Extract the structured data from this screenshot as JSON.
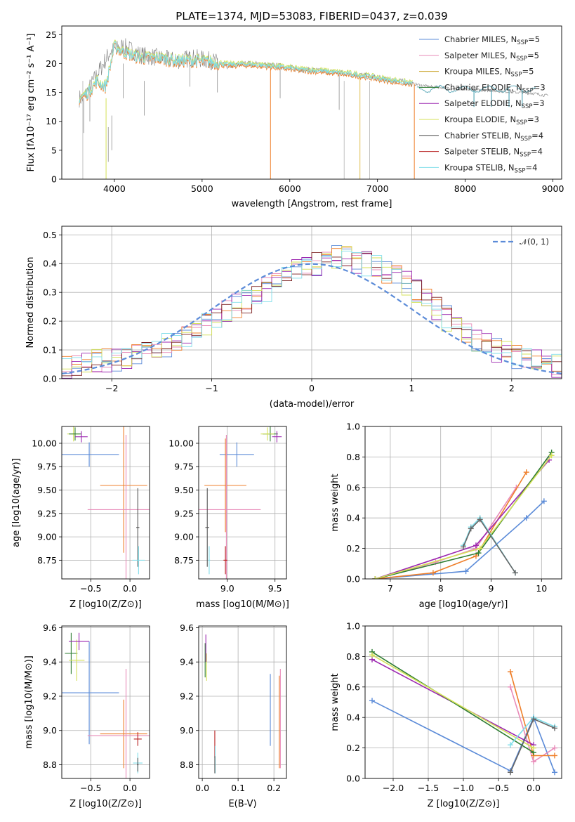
{
  "chart_data": [
    {
      "id": "spectrum",
      "type": "line",
      "title": "PLATE=1374, MJD=53083, FIBERID=0437, z=0.039",
      "xlabel": "wavelength [Angstrom, rest frame]",
      "ylabel": "Flux [fλ10⁻¹⁷ erg cm⁻² s⁻¹ A⁻¹]",
      "xlim": [
        3400,
        9100
      ],
      "ylim": [
        0,
        26.5
      ],
      "xticks": [
        4000,
        5000,
        6000,
        7000,
        8000,
        9000
      ],
      "yticks": [
        0,
        5,
        10,
        15,
        20,
        25
      ],
      "grid": false,
      "legend_position": "top-right",
      "legend": [
        {
          "label": "Chabrier MILES, N_SSP=5",
          "text": "Chabrier MILES, N",
          "sub": "SSP",
          "n": "=5",
          "color": "#5b8bd8"
        },
        {
          "label": "Salpeter MILES, N_SSP=5",
          "text": "Salpeter MILES, N",
          "sub": "SSP",
          "n": "=5",
          "color": "#e88ab8"
        },
        {
          "label": "Kroupa MILES, N_SSP=5",
          "text": "Kroupa MILES, N",
          "sub": "SSP",
          "n": "=5",
          "color": "#c9a227"
        },
        {
          "label": "Chabrier ELODIE, N_SSP=3",
          "text": "Chabrier ELODIE, N",
          "sub": "SSP",
          "n": "=3",
          "color": "#2e7d32"
        },
        {
          "label": "Salpeter ELODIE, N_SSP=3",
          "text": "Salpeter ELODIE, N",
          "sub": "SSP",
          "n": "=3",
          "color": "#9c27b0"
        },
        {
          "label": "Kroupa ELODIE, N_SSP=3",
          "text": "Kroupa ELODIE, N",
          "sub": "SSP",
          "n": "=3",
          "color": "#d4e157"
        },
        {
          "label": "Chabrier STELIB, N_SSP=4",
          "text": "Chabrier STELIB, N",
          "sub": "SSP",
          "n": "=4",
          "color": "#555555"
        },
        {
          "label": "Salpeter STELIB, N_SSP=4",
          "text": "Salpeter STELIB, N",
          "sub": "SSP",
          "n": "=4",
          "color": "#b71c1c"
        },
        {
          "label": "Kroupa STELIB, N_SSP=4",
          "text": "Kroupa STELIB, N",
          "sub": "SSP",
          "n": "=4",
          "color": "#80deea"
        }
      ],
      "observed": {
        "color": "#808080",
        "x": [
          3650,
          3800,
          3950,
          4100,
          4300,
          4500,
          4700,
          4900,
          5100,
          5300,
          5500,
          5700,
          5900,
          6100,
          6300,
          6500,
          6700,
          6900,
          7100,
          7300,
          7400,
          7600,
          7800,
          8000,
          8200,
          8400,
          8600,
          8800,
          8900
        ],
        "y": [
          14,
          18,
          22,
          23,
          21.5,
          21,
          20.5,
          21,
          20.5,
          19.5,
          20,
          19.8,
          19.5,
          19,
          18.8,
          18.5,
          18.2,
          17.8,
          17.2,
          16.8,
          16.5,
          16,
          15.8,
          15.5,
          15.4,
          15.2,
          15,
          14.8,
          14.5
        ]
      },
      "model": {
        "color": "#80deea",
        "x": [
          3600,
          3700,
          3800,
          3900,
          4000,
          4100,
          4300,
          4500,
          4700,
          4900,
          5100,
          5300,
          5500,
          5700,
          5900,
          6100,
          6300,
          6500,
          6700,
          6900,
          7100,
          7300,
          7400
        ],
        "y": [
          14,
          15,
          17,
          16,
          23,
          22,
          21,
          21,
          20.5,
          20.5,
          20.3,
          19.8,
          19.9,
          19.7,
          19.4,
          19,
          18.8,
          18.5,
          18.2,
          17.8,
          17.2,
          16.8,
          16.5
        ]
      },
      "model_tail": {
        "color": "#5aa8b8",
        "x": [
          7500,
          7700,
          7900,
          8100,
          8300,
          8500,
          8700,
          8800
        ],
        "y": [
          16,
          15.5,
          15.5,
          16,
          15.8,
          15.6,
          15.4,
          15.3
        ]
      }
    },
    {
      "id": "residuals",
      "type": "line",
      "xlabel": "(data-model)/error",
      "ylabel": "Normed distribution",
      "xlim": [
        -2.5,
        2.5
      ],
      "ylim": [
        0,
        0.53
      ],
      "xticks": [
        -2,
        -1,
        0,
        1,
        2
      ],
      "yticks": [
        0.0,
        0.1,
        0.2,
        0.3,
        0.4,
        0.5
      ],
      "grid": true,
      "legend_position": "top-right",
      "legend": [
        {
          "label": "𝒩(0, 1)",
          "color": "#5b8bd8",
          "dashed": true
        }
      ],
      "histogram_bin_width": 0.1,
      "histogram_colors": [
        "#5b8bd8",
        "#e88ab8",
        "#ef7f2a",
        "#9c27b0",
        "#d4e157",
        "#7a1f1f",
        "#80deea"
      ],
      "histogram_envelope": [
        0.018,
        0.02,
        0.025,
        0.03,
        0.035,
        0.04,
        0.05,
        0.055,
        0.06,
        0.065,
        0.07,
        0.08,
        0.09,
        0.1,
        0.11,
        0.12,
        0.13,
        0.15,
        0.17,
        0.19,
        0.21,
        0.23,
        0.25,
        0.27,
        0.29,
        0.31,
        0.33,
        0.35,
        0.37,
        0.39,
        0.4,
        0.41,
        0.42,
        0.42,
        0.41,
        0.4,
        0.39,
        0.37,
        0.35,
        0.33,
        0.3,
        0.27,
        0.24,
        0.21,
        0.18,
        0.16,
        0.14,
        0.12,
        0.1,
        0.09,
        0.08,
        0.07,
        0.06,
        0.05,
        0.045,
        0.04,
        0.035,
        0.03,
        0.027,
        0.025
      ]
    },
    {
      "id": "age-vs-Z",
      "type": "scatter",
      "xlabel": "Z [log10(Z/Z⊙)]",
      "ylabel": "age [log10(age/yr)]",
      "xlim": [
        -0.87,
        0.25
      ],
      "ylim": [
        8.55,
        10.18
      ],
      "xticks": [
        -0.5,
        0.0
      ],
      "yticks": [
        8.75,
        9.0,
        9.25,
        9.5,
        9.75,
        10.0
      ],
      "grid": true,
      "points": [
        {
          "x": -0.52,
          "y": 9.88,
          "xerr": 0.38,
          "yerr": 0.13,
          "color": "#5b8bd8"
        },
        {
          "x": -0.08,
          "y": 9.55,
          "xerr": 0.3,
          "yerr": 0.72,
          "color": "#ef7f2a"
        },
        {
          "x": -0.05,
          "y": 9.29,
          "xerr": 0.49,
          "yerr": 0.8,
          "color": "#e88ab8"
        },
        {
          "x": 0.1,
          "y": 9.1,
          "xerr": 0.02,
          "yerr": 0.42,
          "color": "#555555"
        },
        {
          "x": 0.11,
          "y": 8.75,
          "xerr": 0.08,
          "yerr": 0.15,
          "color": "#80deea"
        },
        {
          "x": -0.72,
          "y": 10.1,
          "xerr": 0.08,
          "yerr": 0.08,
          "color": "#d4e157"
        },
        {
          "x": -0.7,
          "y": 10.1,
          "xerr": 0.08,
          "yerr": 0.07,
          "color": "#2e7d32"
        },
        {
          "x": -0.62,
          "y": 10.07,
          "xerr": 0.08,
          "yerr": 0.06,
          "color": "#9c27b0"
        }
      ]
    },
    {
      "id": "age-vs-mass",
      "type": "scatter",
      "xlabel": "mass [log10(M/M⊙)]",
      "ylabel": "",
      "xlim": [
        8.7,
        9.62
      ],
      "ylim": [
        8.55,
        10.18
      ],
      "xticks": [
        9.0,
        9.5
      ],
      "yticks": [
        8.75,
        9.0,
        9.25,
        9.5,
        9.75,
        10.0
      ],
      "grid": true,
      "points": [
        {
          "x": 9.1,
          "y": 9.88,
          "xerr": 0.18,
          "yerr": 0.13,
          "color": "#5b8bd8"
        },
        {
          "x": 8.98,
          "y": 9.55,
          "xerr": 0.22,
          "yerr": 0.5,
          "color": "#ef7f2a"
        },
        {
          "x": 8.99,
          "y": 9.29,
          "xerr": 0.36,
          "yerr": 0.8,
          "color": "#e88ab8"
        },
        {
          "x": 8.79,
          "y": 9.1,
          "xerr": 0.02,
          "yerr": 0.42,
          "color": "#555555"
        },
        {
          "x": 8.98,
          "y": 8.75,
          "xerr": 0.02,
          "yerr": 0.15,
          "color": "#b71c1c"
        },
        {
          "x": 8.81,
          "y": 8.75,
          "xerr": 0.01,
          "yerr": 0.15,
          "color": "#80deea"
        },
        {
          "x": 9.45,
          "y": 10.1,
          "xerr": 0.08,
          "yerr": 0.08,
          "color": "#2e7d32"
        },
        {
          "x": 9.42,
          "y": 10.1,
          "xerr": 0.07,
          "yerr": 0.07,
          "color": "#d4e157"
        },
        {
          "x": 9.52,
          "y": 10.07,
          "xerr": 0.05,
          "yerr": 0.06,
          "color": "#9c27b0"
        }
      ]
    },
    {
      "id": "mass-weight-vs-age",
      "type": "line",
      "xlabel": "age [log10(age/yr)]",
      "ylabel": "mass weight",
      "xlim": [
        6.5,
        10.4
      ],
      "ylim": [
        0,
        1
      ],
      "xticks": [
        7,
        8,
        9,
        10
      ],
      "yticks": [
        0.0,
        0.2,
        0.4,
        0.6,
        0.8,
        1.0
      ],
      "grid": true,
      "series": [
        {
          "color": "#5b8bd8",
          "x": [
            6.7,
            8.5,
            9.7,
            10.05
          ],
          "y": [
            0.0,
            0.05,
            0.4,
            0.51
          ]
        },
        {
          "color": "#e88ab8",
          "x": [
            6.7,
            7.9,
            8.7,
            9.5
          ],
          "y": [
            0.0,
            0.11,
            0.2,
            0.6
          ]
        },
        {
          "color": "#ef7f2a",
          "x": [
            6.7,
            7.85,
            8.7,
            9.7
          ],
          "y": [
            0.0,
            0.04,
            0.15,
            0.7
          ]
        },
        {
          "color": "#9c27b0",
          "x": [
            6.7,
            8.7,
            10.15
          ],
          "y": [
            0.0,
            0.22,
            0.78
          ]
        },
        {
          "color": "#2e7d32",
          "x": [
            6.7,
            8.75,
            10.2
          ],
          "y": [
            0.0,
            0.17,
            0.83
          ]
        },
        {
          "color": "#d4e157",
          "x": [
            6.7,
            8.78,
            10.2
          ],
          "y": [
            0.0,
            0.2,
            0.81
          ]
        },
        {
          "color": "#80deea",
          "x": [
            8.45,
            8.6,
            8.78,
            9.48
          ],
          "y": [
            0.22,
            0.34,
            0.4,
            0.04
          ]
        },
        {
          "color": "#666666",
          "x": [
            8.45,
            8.6,
            8.78,
            9.48
          ],
          "y": [
            0.21,
            0.33,
            0.39,
            0.04
          ]
        }
      ]
    },
    {
      "id": "mass-vs-Z",
      "type": "scatter",
      "xlabel": "Z [log10(Z/Z⊙)]",
      "ylabel": "mass [log10(M/M⊙)]",
      "xlim": [
        -0.87,
        0.25
      ],
      "ylim": [
        8.72,
        9.61
      ],
      "xticks": [
        -0.5,
        0.0
      ],
      "yticks": [
        8.8,
        9.0,
        9.2,
        9.4,
        9.6
      ],
      "grid": true,
      "points": [
        {
          "x": -0.52,
          "y": 9.22,
          "xerr": 0.38,
          "yerr": 0.3,
          "color": "#5b8bd8"
        },
        {
          "x": -0.08,
          "y": 8.98,
          "xerr": 0.3,
          "yerr": 0.2,
          "color": "#ef7f2a"
        },
        {
          "x": -0.05,
          "y": 8.97,
          "xerr": 0.49,
          "yerr": 0.39,
          "color": "#e88ab8"
        },
        {
          "x": 0.1,
          "y": 8.95,
          "xerr": 0.05,
          "yerr": 0.04,
          "color": "#b71c1c"
        },
        {
          "x": 0.1,
          "y": 8.81,
          "xerr": 0.06,
          "yerr": 0.06,
          "color": "#80deea"
        },
        {
          "x": 0.1,
          "y": 8.8,
          "xerr": 0.01,
          "yerr": 0.04,
          "color": "#555555"
        },
        {
          "x": -0.75,
          "y": 9.45,
          "xerr": 0.08,
          "yerr": 0.12,
          "color": "#2e7d32"
        },
        {
          "x": -0.68,
          "y": 9.41,
          "xerr": 0.1,
          "yerr": 0.12,
          "color": "#d4e157"
        },
        {
          "x": -0.65,
          "y": 9.52,
          "xerr": 0.13,
          "yerr": 0.05,
          "color": "#9c27b0"
        }
      ]
    },
    {
      "id": "mass-vs-ebv",
      "type": "scatter",
      "xlabel": "E(B-V)",
      "ylabel": "",
      "xlim": [
        -0.01,
        0.235
      ],
      "ylim": [
        8.72,
        9.61
      ],
      "xticks": [
        0.0,
        0.1,
        0.2
      ],
      "yticks": [
        8.8,
        9.0,
        9.2,
        9.4,
        9.6
      ],
      "grid": true,
      "points": [
        {
          "x": 0.19,
          "y": 9.12,
          "xerr": 0,
          "yerr": 0.21,
          "color": "#5b8bd8"
        },
        {
          "x": 0.215,
          "y": 9.05,
          "xerr": 0,
          "yerr": 0.27,
          "color": "#ef7f2a"
        },
        {
          "x": 0.218,
          "y": 9.07,
          "xerr": 0,
          "yerr": 0.29,
          "color": "#e88ab8"
        },
        {
          "x": 0.035,
          "y": 8.92,
          "xerr": 0,
          "yerr": 0.08,
          "color": "#b71c1c"
        },
        {
          "x": 0.036,
          "y": 8.83,
          "xerr": 0,
          "yerr": 0.08,
          "color": "#80deea"
        },
        {
          "x": 0.035,
          "y": 8.8,
          "xerr": 0,
          "yerr": 0.05,
          "color": "#555555"
        },
        {
          "x": 0.008,
          "y": 9.41,
          "xerr": 0,
          "yerr": 0.1,
          "color": "#2e7d32"
        },
        {
          "x": 0.012,
          "y": 9.37,
          "xerr": 0,
          "yerr": 0.08,
          "color": "#d4e157"
        },
        {
          "x": 0.01,
          "y": 9.48,
          "xerr": 0,
          "yerr": 0.08,
          "color": "#9c27b0"
        }
      ]
    },
    {
      "id": "mass-weight-vs-Z",
      "type": "line",
      "xlabel": "Z [log10(Z/Z⊙)]",
      "ylabel": "mass weight",
      "xlim": [
        -2.4,
        0.4
      ],
      "ylim": [
        0,
        1
      ],
      "xticks": [
        -2.0,
        -1.5,
        -1.0,
        -0.5,
        0.0
      ],
      "yticks": [
        0.0,
        0.2,
        0.4,
        0.6,
        0.8,
        1.0
      ],
      "grid": true,
      "series": [
        {
          "color": "#5b8bd8",
          "x": [
            -2.3,
            -0.33,
            0.0,
            0.3
          ],
          "y": [
            0.51,
            0.05,
            0.4,
            0.04
          ]
        },
        {
          "color": "#e88ab8",
          "x": [
            -0.33,
            0.0,
            0.3
          ],
          "y": [
            0.6,
            0.11,
            0.2
          ]
        },
        {
          "color": "#ef7f2a",
          "x": [
            -0.33,
            0.0,
            0.3
          ],
          "y": [
            0.7,
            0.15,
            0.15
          ]
        },
        {
          "color": "#9c27b0",
          "x": [
            -2.3,
            0.0
          ],
          "y": [
            0.78,
            0.22
          ]
        },
        {
          "color": "#2e7d32",
          "x": [
            -2.3,
            0.0
          ],
          "y": [
            0.83,
            0.17
          ]
        },
        {
          "color": "#d4e157",
          "x": [
            -2.3,
            0.0
          ],
          "y": [
            0.81,
            0.2
          ]
        },
        {
          "color": "#80deea",
          "x": [
            -0.33,
            0.0,
            0.3
          ],
          "y": [
            0.22,
            0.4,
            0.34
          ]
        },
        {
          "color": "#666666",
          "x": [
            -0.33,
            0.0,
            0.3
          ],
          "y": [
            0.04,
            0.39,
            0.33
          ]
        }
      ]
    }
  ]
}
